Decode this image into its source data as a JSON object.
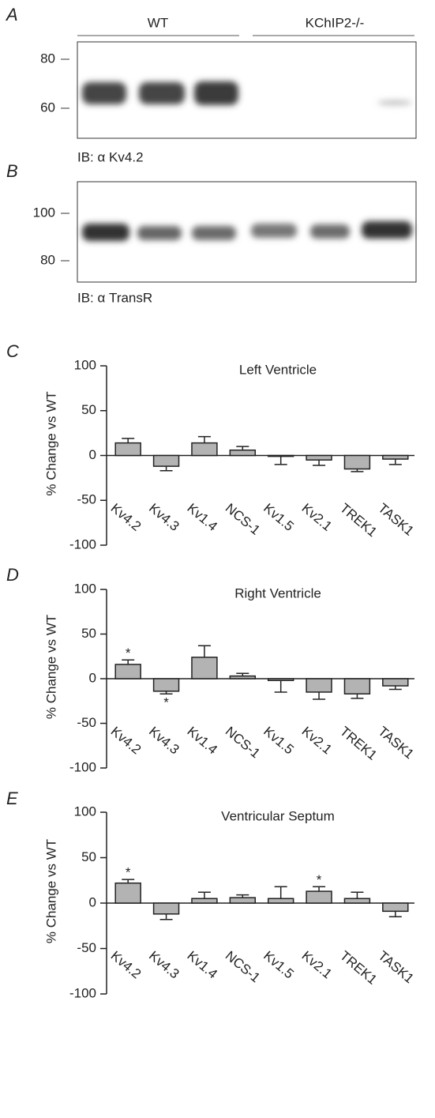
{
  "blots": [
    {
      "panel": "A",
      "groups": [
        "WT",
        "KChIP2-/-"
      ],
      "markers": [
        80,
        60
      ],
      "caption": "IB: α Kv4.2"
    },
    {
      "panel": "B",
      "markers": [
        100,
        80
      ],
      "caption": "IB: α TransR"
    }
  ],
  "chart_data": [
    {
      "type": "bar",
      "panel": "C",
      "title": "Left Ventricle",
      "y_label": "% Change vs WT",
      "categories": [
        "Kv4.2",
        "Kv4.3",
        "Kv1.4",
        "NCS-1",
        "Kv1.5",
        "Kv2.1",
        "TREK1",
        "TASK1"
      ],
      "values": [
        14,
        -12,
        14,
        6,
        -1,
        -5,
        -15,
        -4
      ],
      "errors": [
        5,
        5,
        7,
        4,
        9,
        6,
        3,
        6
      ],
      "color": "#b3b3b3",
      "ylim": [
        -100,
        100
      ],
      "yticks": [
        100,
        50,
        0,
        -50,
        -100
      ]
    },
    {
      "type": "bar",
      "panel": "D",
      "title": "Right Ventricle",
      "y_label": "% Change vs WT",
      "categories": [
        "Kv4.2",
        "Kv4.3",
        "Kv1.4",
        "NCS-1",
        "Kv1.5",
        "Kv2.1",
        "TREK1",
        "TASK1"
      ],
      "values": [
        16,
        -14,
        24,
        3,
        -2,
        -15,
        -17,
        -8
      ],
      "errors": [
        5,
        3,
        13,
        3,
        13,
        8,
        5,
        4
      ],
      "annotations": [
        "*",
        "*",
        null,
        null,
        null,
        null,
        null,
        null
      ],
      "color": "#b3b3b3",
      "ylim": [
        -100,
        100
      ],
      "yticks": [
        100,
        50,
        0,
        -50,
        -100
      ]
    },
    {
      "type": "bar",
      "panel": "E",
      "title": "Ventricular Septum",
      "y_label": "% Change vs WT",
      "categories": [
        "Kv4.2",
        "Kv4.3",
        "Kv1.4",
        "NCS-1",
        "Kv1.5",
        "Kv2.1",
        "TREK1",
        "TASK1"
      ],
      "values": [
        22,
        -12,
        5,
        6,
        5,
        13,
        5,
        -9
      ],
      "errors": [
        4,
        6,
        7,
        3,
        13,
        5,
        7,
        6
      ],
      "annotations": [
        "*",
        null,
        null,
        null,
        null,
        "*",
        null,
        null
      ],
      "color": "#b3b3b3",
      "ylim": [
        -100,
        100
      ],
      "yticks": [
        100,
        50,
        0,
        -50,
        -100
      ]
    }
  ]
}
